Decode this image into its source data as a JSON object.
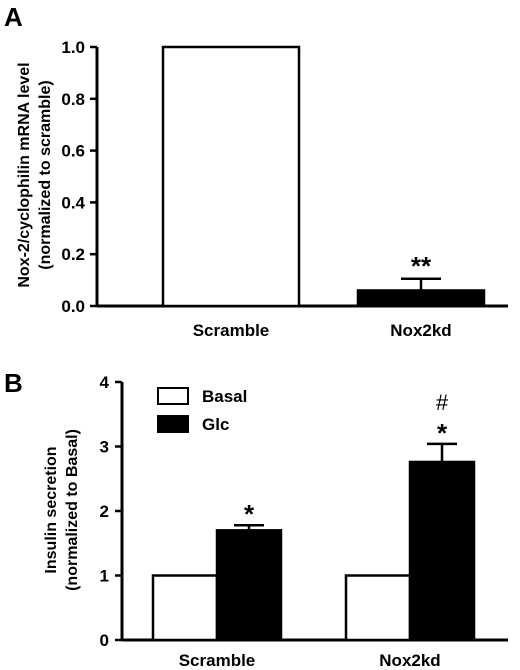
{
  "panel_a": {
    "letter": "A",
    "ylabel_line1": "Nox-2/cyclophilin mRNA level",
    "ylabel_line2": "(normalized to scramble)"
  },
  "panel_b": {
    "letter": "B",
    "ylabel_line1": "Insulin secretion",
    "ylabel_line2": "(normalized to Basal)"
  },
  "chart_data": [
    {
      "type": "bar",
      "panel": "A",
      "categories": [
        "Scramble",
        "Nox2kd"
      ],
      "values": [
        1.0,
        0.06
      ],
      "errors": [
        0,
        0.045
      ],
      "colors": [
        "#ffffff",
        "#000000"
      ],
      "significance": [
        "",
        "**"
      ],
      "ylabel": "Nox-2/cyclophilin mRNA level (normalized to scramble)",
      "ylim": [
        0,
        1.0
      ],
      "yticks": [
        "0.0",
        "0.2",
        "0.4",
        "0.6",
        "0.8",
        "1.0"
      ],
      "grid": false
    },
    {
      "type": "bar",
      "panel": "B",
      "categories": [
        "Scramble",
        "Nox2kd"
      ],
      "series": [
        {
          "name": "Basal",
          "color": "#ffffff",
          "values": [
            1.0,
            1.0
          ],
          "errors": [
            0,
            0
          ],
          "marks": [
            "",
            ""
          ]
        },
        {
          "name": "Glc",
          "color": "#000000",
          "values": [
            1.7,
            2.76
          ],
          "errors": [
            0.08,
            0.28
          ],
          "marks": [
            "*",
            "*"
          ],
          "marks_above": [
            "",
            "#"
          ]
        }
      ],
      "ylabel": "Insulin secretion (normalized to Basal)",
      "ylim": [
        0,
        4
      ],
      "yticks": [
        "0",
        "1",
        "2",
        "3",
        "4"
      ],
      "legend_position": "top-left",
      "grid": false
    }
  ]
}
